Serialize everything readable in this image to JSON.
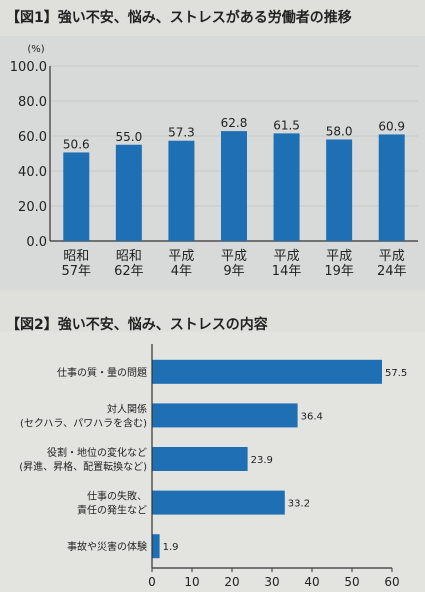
{
  "figures": {
    "fig1_title": "【図1】強い不安、悩み、ストレスがある労働者の推移",
    "fig2_title": "【図2】強い不安、悩み、ストレスの内容"
  },
  "colors": {
    "bar": "#1f6fb5",
    "grid": "#c8cbc8",
    "axis": "#333333",
    "text": "#222222"
  },
  "chart_data": [
    {
      "type": "bar",
      "title": "【図1】強い不安、悩み、ストレスがある労働者の推移",
      "ylabel": "(%)",
      "ylim": [
        0,
        100
      ],
      "yticks": [
        "0.0",
        "20.0",
        "40.0",
        "60.0",
        "80.0",
        "100.0"
      ],
      "categories": [
        [
          "昭和",
          "57年"
        ],
        [
          "昭和",
          "62年"
        ],
        [
          "平成",
          "4年"
        ],
        [
          "平成",
          "9年"
        ],
        [
          "平成",
          "14年"
        ],
        [
          "平成",
          "19年"
        ],
        [
          "平成",
          "24年"
        ]
      ],
      "values": [
        50.6,
        55.0,
        57.3,
        62.8,
        61.5,
        58.0,
        60.9
      ],
      "value_labels": [
        "50.6",
        "55.0",
        "57.3",
        "62.8",
        "61.5",
        "58.0",
        "60.9"
      ],
      "grid": true
    },
    {
      "type": "bar",
      "orientation": "horizontal",
      "title": "【図2】強い不安、悩み、ストレスの内容",
      "xlim": [
        0,
        60
      ],
      "xticks": [
        "0",
        "10",
        "20",
        "30",
        "40",
        "50",
        "60"
      ],
      "categories": [
        [
          "仕事の質・量の問題"
        ],
        [
          "対人関係",
          "(セクハラ、パワハラを含む)"
        ],
        [
          "役割・地位の変化など",
          "(昇進、昇格、配置転換など)"
        ],
        [
          "仕事の失敗、",
          "責任の発生など"
        ],
        [
          "事故や災害の体験"
        ]
      ],
      "values": [
        57.5,
        36.4,
        23.9,
        33.2,
        1.9
      ],
      "value_labels": [
        "57.5",
        "36.4",
        "23.9",
        "33.2",
        "1.9"
      ],
      "grid": false
    }
  ]
}
